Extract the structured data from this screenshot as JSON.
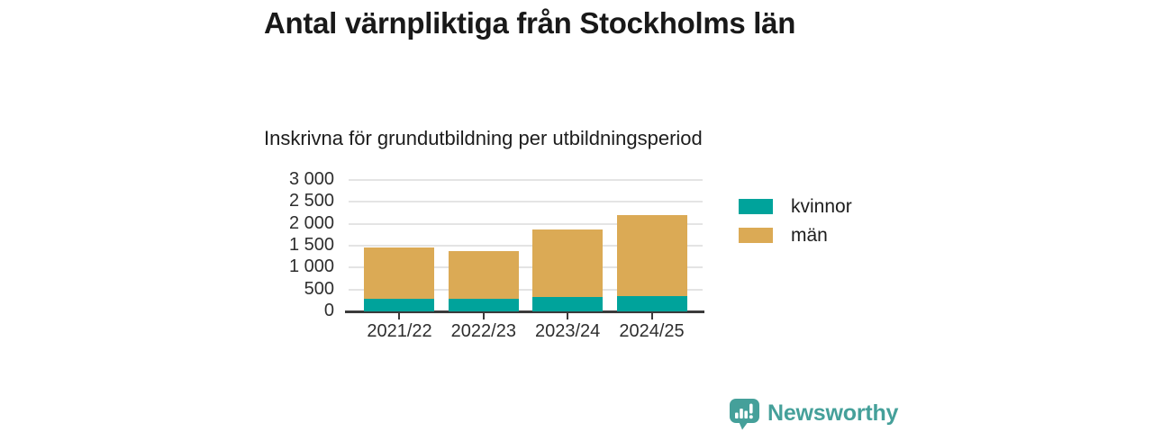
{
  "title": "Antal värnpliktiga från Stockholms län",
  "subtitle": "Inskrivna för grundutbildning per utbildningsperiod",
  "chart_data": {
    "type": "bar",
    "stacked": true,
    "title": "Antal värnpliktiga från Stockholms län",
    "subtitle": "Inskrivna för grundutbildning per utbildningsperiod",
    "categories": [
      "2021/22",
      "2022/23",
      "2023/24",
      "2024/25"
    ],
    "series": [
      {
        "name": "kvinnor",
        "color": "#00a39b",
        "values": [
          290,
          290,
          330,
          345
        ]
      },
      {
        "name": "män",
        "color": "#dbaa55",
        "values": [
          1160,
          1080,
          1540,
          1845
        ]
      }
    ],
    "stack_totals": [
      1450,
      1370,
      1870,
      2190
    ],
    "xlabel": "",
    "ylabel": "",
    "ylim": [
      0,
      3000
    ],
    "ytick_step": 500,
    "ytick_labels": [
      "0",
      "500",
      "1 000",
      "1 500",
      "2 000",
      "2 500",
      "3 000"
    ],
    "grid": true,
    "legend_position": "right",
    "colors": {
      "grid": "#e4e4e4",
      "axis": "#3b3b3b",
      "text": "#2e2e2e"
    }
  },
  "branding": {
    "logo_text": "Newsworthy",
    "logo_color": "#45a09a",
    "logo_icon": "bar-chart-speech-bubble"
  }
}
